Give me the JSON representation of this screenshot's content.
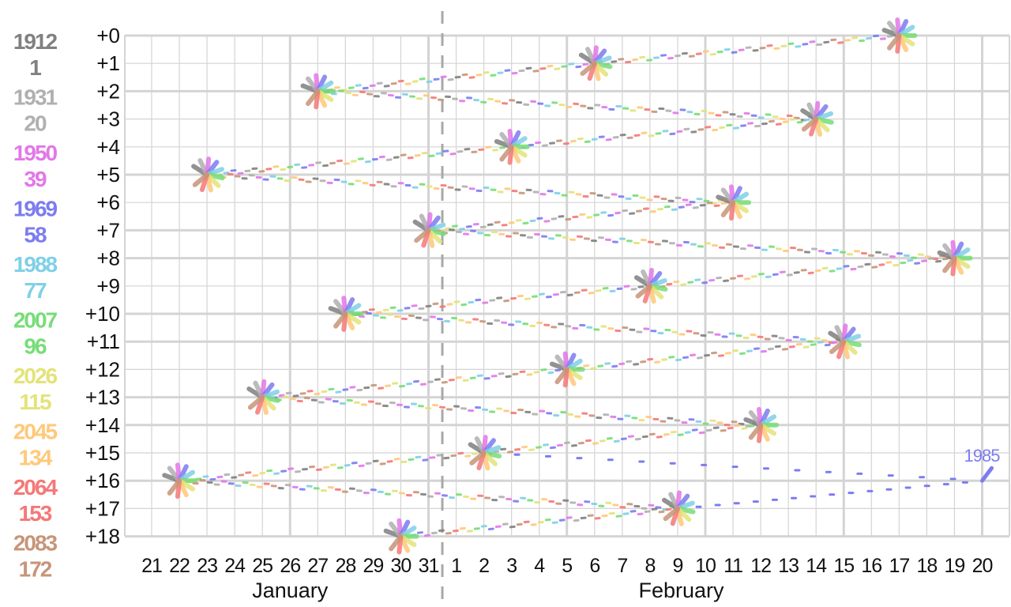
{
  "chart_data": {
    "type": "line",
    "x_axis": {
      "months": [
        {
          "name": "January",
          "days": [
            21,
            22,
            23,
            24,
            25,
            26,
            27,
            28,
            29,
            30,
            31
          ]
        },
        {
          "name": "February",
          "days": [
            1,
            2,
            3,
            4,
            5,
            6,
            7,
            8,
            9,
            10,
            11,
            12,
            13,
            14,
            15,
            16,
            17,
            18,
            19,
            20
          ]
        }
      ],
      "divider_between": [
        "31",
        "1"
      ]
    },
    "y_axis": {
      "offset_labels": [
        "+0",
        "+1",
        "+2",
        "+3",
        "+4",
        "+5",
        "+6",
        "+7",
        "+8",
        "+9",
        "+10",
        "+11",
        "+12",
        "+13",
        "+14",
        "+15",
        "+16",
        "+17",
        "+18"
      ]
    },
    "legend": [
      {
        "year": "1912",
        "offset": "1",
        "color": "#808080"
      },
      {
        "year": "1931",
        "offset": "20",
        "color": "#b0b0b0"
      },
      {
        "year": "1950",
        "offset": "39",
        "color": "#e377e8"
      },
      {
        "year": "1969",
        "offset": "58",
        "color": "#7c7cf0"
      },
      {
        "year": "1988",
        "offset": "77",
        "color": "#7fd0e6"
      },
      {
        "year": "2007",
        "offset": "96",
        "color": "#77dd77"
      },
      {
        "year": "2026",
        "offset": "115",
        "color": "#e3e37a"
      },
      {
        "year": "2045",
        "offset": "134",
        "color": "#ffc87a"
      },
      {
        "year": "2064",
        "offset": "153",
        "color": "#f57878"
      },
      {
        "year": "2083",
        "offset": "172",
        "color": "#c79578"
      }
    ],
    "cycle_path": [
      {
        "x": "Feb 17",
        "y": 0
      },
      {
        "x": "Feb 6",
        "y": 1
      },
      {
        "x": "Jan 27",
        "y": 2
      },
      {
        "x": "Feb 14",
        "y": 3
      },
      {
        "x": "Feb 3",
        "y": 4
      },
      {
        "x": "Jan 23",
        "y": 5
      },
      {
        "x": "Feb 11",
        "y": 6
      },
      {
        "x": "Jan 31",
        "y": 7
      },
      {
        "x": "Feb 19",
        "y": 8
      },
      {
        "x": "Feb 8",
        "y": 9
      },
      {
        "x": "Jan 28",
        "y": 10
      },
      {
        "x": "Feb 15",
        "y": 11
      },
      {
        "x": "Feb 5",
        "y": 12
      },
      {
        "x": "Jan 25",
        "y": 13
      },
      {
        "x": "Feb 12",
        "y": 14
      },
      {
        "x": "Feb 2",
        "y": 15
      },
      {
        "x": "Jan 22",
        "y": 16
      },
      {
        "x": "Feb 9",
        "y": 17
      },
      {
        "x": "Jan 30",
        "y": 18
      }
    ],
    "annotation": {
      "text": "1985",
      "x": "Feb 20",
      "y": 16,
      "color": "#7c7cf0"
    },
    "grid": true
  }
}
